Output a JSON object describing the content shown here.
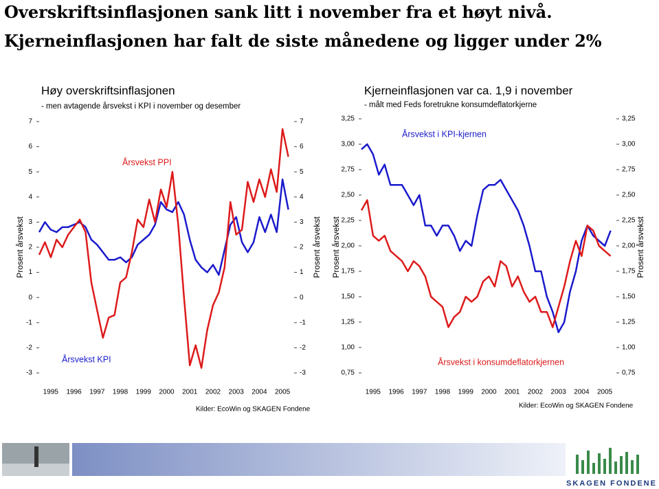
{
  "header": {
    "lines": [
      "Overskriftsinflasjonen sank litt i november fra et høyt nivå.",
      "Kjerneinflasjonen har falt de siste månedene og ligger under 2%"
    ]
  },
  "chart_data": [
    {
      "type": "line",
      "title": "Høy overskriftsinflasjonen",
      "subtitle": "- men avtagende årsvekst i KPI i november og desember",
      "ylabel": "Prosent årsvekst",
      "y2label": "Prosent årsvekst",
      "source": "Kilder: EcoWin og SKAGEN Fondene",
      "annotations": [
        "Årsvekst PPI",
        "Årsvekst KPI"
      ],
      "x": [
        1995.0,
        1995.25,
        1995.5,
        1995.75,
        1996.0,
        1996.25,
        1996.5,
        1996.75,
        1997.0,
        1997.25,
        1997.5,
        1997.75,
        1998.0,
        1998.25,
        1998.5,
        1998.75,
        1999.0,
        1999.25,
        1999.5,
        1999.75,
        2000.0,
        2000.25,
        2000.5,
        2000.75,
        2001.0,
        2001.25,
        2001.5,
        2001.75,
        2002.0,
        2002.25,
        2002.5,
        2002.75,
        2003.0,
        2003.25,
        2003.5,
        2003.75,
        2004.0,
        2004.25,
        2004.5,
        2004.75,
        2005.0,
        2005.25,
        2005.5,
        2005.75
      ],
      "series": [
        {
          "name": "Årsvekst KPI",
          "color": "#1a1acc",
          "values": [
            2.6,
            3.0,
            2.7,
            2.6,
            2.8,
            2.8,
            2.9,
            3.0,
            2.8,
            2.3,
            2.1,
            1.8,
            1.5,
            1.5,
            1.6,
            1.4,
            1.6,
            2.1,
            2.3,
            2.5,
            2.9,
            3.8,
            3.5,
            3.4,
            3.8,
            3.3,
            2.3,
            1.5,
            1.2,
            1.0,
            1.3,
            0.9,
            1.9,
            2.9,
            3.2,
            2.2,
            1.8,
            2.2,
            3.2,
            2.6,
            3.3,
            2.6,
            4.7,
            3.5
          ]
        },
        {
          "name": "Årsvekst PPI",
          "color": "#dd1a1a",
          "values": [
            1.7,
            2.2,
            1.6,
            2.3,
            2.0,
            2.5,
            2.8,
            3.1,
            2.6,
            0.6,
            -0.5,
            -1.6,
            -0.8,
            -0.7,
            0.6,
            0.8,
            1.8,
            3.1,
            2.8,
            3.9,
            3.0,
            4.3,
            3.6,
            5.0,
            2.9,
            0.0,
            -2.7,
            -1.9,
            -2.8,
            -1.3,
            -0.3,
            0.2,
            1.2,
            3.8,
            2.5,
            2.7,
            4.6,
            3.8,
            4.7,
            4.0,
            5.1,
            4.2,
            6.7,
            5.6
          ]
        }
      ],
      "xlim": [
        1995,
        2006
      ],
      "xticks": [
        {
          "value": 1995.5,
          "label": "1995"
        },
        {
          "value": 1996.5,
          "label": "1996"
        },
        {
          "value": 1997.5,
          "label": "1997"
        },
        {
          "value": 1998.5,
          "label": "1998"
        },
        {
          "value": 1999.5,
          "label": "1999"
        },
        {
          "value": 2000.5,
          "label": "2000"
        },
        {
          "value": 2001.5,
          "label": "2001"
        },
        {
          "value": 2002.5,
          "label": "2002"
        },
        {
          "value": 2003.5,
          "label": "2003"
        },
        {
          "value": 2004.5,
          "label": "2004"
        },
        {
          "value": 2005.5,
          "label": "2005"
        }
      ],
      "ylim": [
        -3,
        7
      ],
      "yticks": [
        -3,
        -2,
        -1,
        0,
        1,
        2,
        3,
        4,
        5,
        6,
        7
      ],
      "y2lim": [
        -3,
        7
      ],
      "y2ticks": [
        -3,
        -2,
        -1,
        0,
        1,
        2,
        3,
        4,
        5,
        6,
        7
      ]
    },
    {
      "type": "line",
      "title": "Kjerneinflasjonen var ca. 1,9 i november",
      "subtitle": "- målt med Feds foretrukne konsumdeflatorkjerne",
      "ylabel": "Prosent årsvekst",
      "y2label": "Prosent årsvekst",
      "source": "Kilder: EcoWin og SKAGEN Fondene",
      "annotations": [
        "Årsvekst i KPI-kjernen",
        "Årsvekst i konsumdeflatorkjernen"
      ],
      "x": [
        1995.0,
        1995.25,
        1995.5,
        1995.75,
        1996.0,
        1996.25,
        1996.5,
        1996.75,
        1997.0,
        1997.25,
        1997.5,
        1997.75,
        1998.0,
        1998.25,
        1998.5,
        1998.75,
        1999.0,
        1999.25,
        1999.5,
        1999.75,
        2000.0,
        2000.25,
        2000.5,
        2000.75,
        2001.0,
        2001.25,
        2001.5,
        2001.75,
        2002.0,
        2002.25,
        2002.5,
        2002.75,
        2003.0,
        2003.25,
        2003.5,
        2003.75,
        2004.0,
        2004.25,
        2004.5,
        2004.75,
        2005.0,
        2005.25,
        2005.5,
        2005.75
      ],
      "series": [
        {
          "name": "Årsvekst i KPI-kjernen",
          "color": "#1a1acc",
          "values": [
            2.95,
            3.0,
            2.9,
            2.7,
            2.8,
            2.6,
            2.6,
            2.6,
            2.5,
            2.4,
            2.5,
            2.2,
            2.2,
            2.1,
            2.2,
            2.2,
            2.1,
            1.95,
            2.05,
            2.0,
            2.3,
            2.55,
            2.6,
            2.6,
            2.65,
            2.55,
            2.45,
            2.35,
            2.2,
            2.0,
            1.75,
            1.75,
            1.5,
            1.35,
            1.15,
            1.25,
            1.55,
            1.75,
            2.05,
            2.2,
            2.1,
            2.05,
            2.0,
            2.15
          ]
        },
        {
          "name": "Årsvekst i konsumdeflatorkjernen",
          "color": "#dd1a1a",
          "values": [
            2.35,
            2.45,
            2.1,
            2.05,
            2.1,
            1.95,
            1.9,
            1.85,
            1.75,
            1.85,
            1.8,
            1.7,
            1.5,
            1.45,
            1.4,
            1.2,
            1.3,
            1.35,
            1.5,
            1.45,
            1.5,
            1.65,
            1.7,
            1.6,
            1.85,
            1.8,
            1.6,
            1.7,
            1.55,
            1.45,
            1.5,
            1.35,
            1.35,
            1.2,
            1.4,
            1.6,
            1.85,
            2.05,
            1.9,
            2.2,
            2.15,
            2.0,
            1.95,
            1.9
          ]
        }
      ],
      "xlim": [
        1995,
        2006
      ],
      "xticks": [
        {
          "value": 1995.5,
          "label": "1995"
        },
        {
          "value": 1996.5,
          "label": "1996"
        },
        {
          "value": 1997.5,
          "label": "1997"
        },
        {
          "value": 1998.5,
          "label": "1998"
        },
        {
          "value": 1999.5,
          "label": "1999"
        },
        {
          "value": 2000.5,
          "label": "2000"
        },
        {
          "value": 2001.5,
          "label": "2001"
        },
        {
          "value": 2002.5,
          "label": "2002"
        },
        {
          "value": 2003.5,
          "label": "2003"
        },
        {
          "value": 2004.5,
          "label": "2004"
        },
        {
          "value": 2005.5,
          "label": "2005"
        }
      ],
      "ylim": [
        0.75,
        3.25
      ],
      "yticks": [
        {
          "value": 0.75,
          "label": "0,75"
        },
        {
          "value": 1.0,
          "label": "1,00"
        },
        {
          "value": 1.25,
          "label": "1,25"
        },
        {
          "value": 1.5,
          "label": "1,50"
        },
        {
          "value": 1.75,
          "label": "1,75"
        },
        {
          "value": 2.0,
          "label": "2,00"
        },
        {
          "value": 2.25,
          "label": "2,25"
        },
        {
          "value": 2.5,
          "label": "2,50"
        },
        {
          "value": 2.75,
          "label": "2,75"
        },
        {
          "value": 3.0,
          "label": "3,00"
        },
        {
          "value": 3.25,
          "label": "3,25"
        }
      ],
      "y2lim": [
        0.75,
        3.25
      ],
      "y2ticks": [
        {
          "value": 0.75,
          "label": "0,75"
        },
        {
          "value": 1.0,
          "label": "1,00"
        },
        {
          "value": 1.25,
          "label": "1,25"
        },
        {
          "value": 1.5,
          "label": "1,50"
        },
        {
          "value": 1.75,
          "label": "1,75"
        },
        {
          "value": 2.0,
          "label": "2,00"
        },
        {
          "value": 2.25,
          "label": "2,25"
        },
        {
          "value": 2.5,
          "label": "2,50"
        },
        {
          "value": 2.75,
          "label": "2,75"
        },
        {
          "value": 3.0,
          "label": "3,00"
        },
        {
          "value": 3.25,
          "label": "3,25"
        }
      ]
    }
  ],
  "footer": {
    "logo": "SKAGEN FONDENE"
  }
}
